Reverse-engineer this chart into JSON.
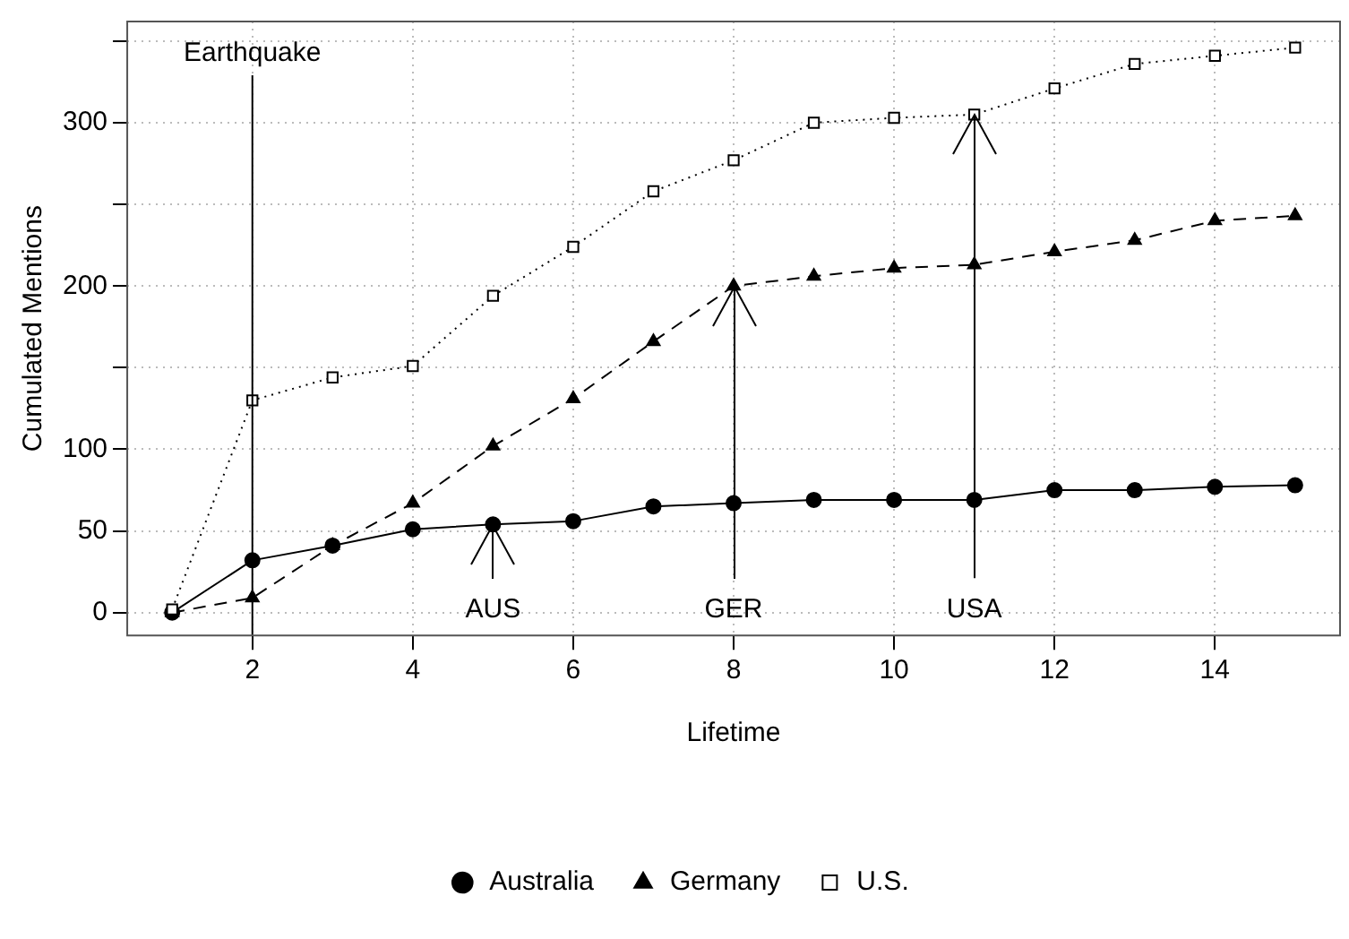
{
  "chart_data": {
    "type": "line",
    "xlabel": "Lifetime",
    "ylabel": "Cumulated Mentions",
    "x": [
      1,
      2,
      3,
      4,
      5,
      6,
      7,
      8,
      9,
      10,
      11,
      12,
      13,
      14,
      15
    ],
    "series": [
      {
        "name": "Australia",
        "color": "#000000",
        "marker": "circle",
        "line_style": "solid",
        "values": [
          0,
          32,
          41,
          51,
          54,
          56,
          65,
          67,
          69,
          69,
          69,
          75,
          75,
          77,
          78
        ]
      },
      {
        "name": "Germany",
        "color": "#000000",
        "marker": "triangle",
        "line_style": "dashed",
        "values": [
          0,
          9,
          41,
          67,
          102,
          131,
          166,
          200,
          206,
          211,
          213,
          221,
          228,
          240,
          243
        ]
      },
      {
        "name": "U.S.",
        "color": "#000000",
        "marker": "square",
        "line_style": "dotted",
        "values": [
          2,
          130,
          144,
          151,
          194,
          224,
          258,
          277,
          300,
          303,
          305,
          321,
          336,
          341,
          346
        ]
      }
    ],
    "xlim": [
      0.44,
      15.56
    ],
    "xticks": [
      2,
      4,
      6,
      8,
      10,
      12,
      14
    ],
    "ylim": [
      -14,
      362
    ],
    "yticks": [
      0,
      50,
      100,
      {
        "value": 150,
        "label": null
      },
      200,
      {
        "value": 250,
        "label": null
      },
      300,
      {
        "value": 350,
        "label": null
      }
    ],
    "ref_lines": [
      {
        "axis": "x",
        "value": 2,
        "label": "Earthquake",
        "color": "#000000"
      }
    ],
    "annotations": [
      {
        "text": "AUS",
        "x": 5,
        "y": 54
      },
      {
        "text": "GER",
        "x": 8,
        "y": 200
      },
      {
        "text": "USA",
        "x": 11,
        "y": 305
      }
    ],
    "grid": true,
    "legend": "bottom"
  }
}
